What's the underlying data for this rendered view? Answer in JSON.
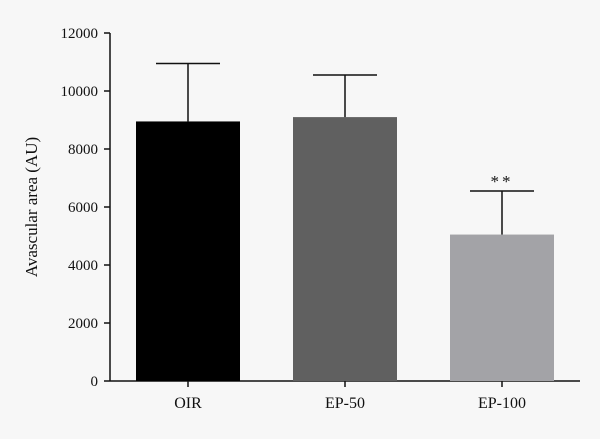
{
  "chart_data": {
    "type": "bar",
    "title": "",
    "xlabel": "",
    "ylabel": "Avascular area (AU)",
    "ylim": [
      0,
      12000
    ],
    "yticks": [
      "0",
      "2000",
      "4000",
      "6000",
      "8000",
      "10000",
      "12000"
    ],
    "yticks_values": [
      0,
      2000,
      4000,
      6000,
      8000,
      10000,
      12000
    ],
    "categories": [
      "OIR",
      "EP-50",
      "EP-100"
    ],
    "values": [
      8950,
      9100,
      5050
    ],
    "error_upper": [
      2000,
      1450,
      1500
    ],
    "bar_colors": [
      "#000000",
      "#606060",
      "#a3a3a7"
    ],
    "annotations": [
      "",
      "",
      "**"
    ],
    "grid": false,
    "legend": "none"
  }
}
